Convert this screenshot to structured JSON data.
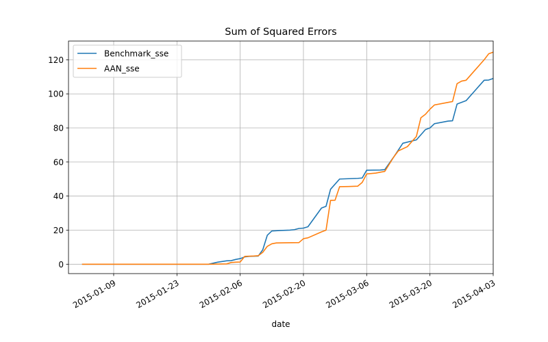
{
  "chart_data": {
    "type": "line",
    "title": "Sum of Squared Errors",
    "xlabel": "date",
    "ylabel": "",
    "grid": true,
    "legend_position": "upper-left",
    "x_ticks": [
      "2015-01-09",
      "2015-01-23",
      "2015-02-06",
      "2015-02-20",
      "2015-03-06",
      "2015-03-20",
      "2015-04-03"
    ],
    "xlim": [
      "2014-12-30",
      "2015-04-03"
    ],
    "ylim": [
      -5.5,
      131
    ],
    "y_ticks": [
      0,
      20,
      40,
      60,
      80,
      100,
      120
    ],
    "series": [
      {
        "name": "Benchmark_sse",
        "color": "#1f77b4",
        "points": [
          [
            "2015-01-02",
            0
          ],
          [
            "2015-01-09",
            0
          ],
          [
            "2015-01-16",
            0
          ],
          [
            "2015-01-23",
            0
          ],
          [
            "2015-01-30",
            0
          ],
          [
            "2015-02-01",
            1.2
          ],
          [
            "2015-02-03",
            2.0
          ],
          [
            "2015-02-04",
            2.1
          ],
          [
            "2015-02-05",
            2.8
          ],
          [
            "2015-02-06",
            3.3
          ],
          [
            "2015-02-07",
            4.3
          ],
          [
            "2015-02-08",
            4.6
          ],
          [
            "2015-02-09",
            4.7
          ],
          [
            "2015-02-10",
            4.8
          ],
          [
            "2015-02-11",
            8.5
          ],
          [
            "2015-02-12",
            17.0
          ],
          [
            "2015-02-13",
            19.5
          ],
          [
            "2015-02-15",
            19.8
          ],
          [
            "2015-02-17",
            20.0
          ],
          [
            "2015-02-18",
            20.3
          ],
          [
            "2015-02-19",
            21.0
          ],
          [
            "2015-02-20",
            21.2
          ],
          [
            "2015-02-21",
            22.0
          ],
          [
            "2015-02-24",
            33.0
          ],
          [
            "2015-02-25",
            34.0
          ],
          [
            "2015-02-26",
            44.0
          ],
          [
            "2015-02-28",
            50.0
          ],
          [
            "2015-03-02",
            50.2
          ],
          [
            "2015-03-04",
            50.4
          ],
          [
            "2015-03-05",
            50.6
          ],
          [
            "2015-03-06",
            55.2
          ],
          [
            "2015-03-09",
            55.3
          ],
          [
            "2015-03-10",
            55.5
          ],
          [
            "2015-03-12",
            63.0
          ],
          [
            "2015-03-14",
            71.0
          ],
          [
            "2015-03-17",
            73.0
          ],
          [
            "2015-03-18",
            76.0
          ],
          [
            "2015-03-19",
            79.0
          ],
          [
            "2015-03-20",
            80.0
          ],
          [
            "2015-03-21",
            82.5
          ],
          [
            "2015-03-24",
            84.0
          ],
          [
            "2015-03-25",
            84.2
          ],
          [
            "2015-03-26",
            94.0
          ],
          [
            "2015-03-28",
            96.0
          ],
          [
            "2015-03-30",
            102.0
          ],
          [
            "2015-04-01",
            108.0
          ],
          [
            "2015-04-02",
            108.1
          ],
          [
            "2015-04-03",
            109.0
          ]
        ]
      },
      {
        "name": "AAN_sse",
        "color": "#ff7f0e",
        "points": [
          [
            "2015-01-02",
            0
          ],
          [
            "2015-01-09",
            0
          ],
          [
            "2015-01-16",
            0
          ],
          [
            "2015-01-23",
            0
          ],
          [
            "2015-01-30",
            0
          ],
          [
            "2015-02-03",
            0.2
          ],
          [
            "2015-02-04",
            1.0
          ],
          [
            "2015-02-05",
            1.2
          ],
          [
            "2015-02-06",
            1.3
          ],
          [
            "2015-02-07",
            4.6
          ],
          [
            "2015-02-09",
            4.8
          ],
          [
            "2015-02-10",
            5.0
          ],
          [
            "2015-02-11",
            7.0
          ],
          [
            "2015-02-12",
            10.5
          ],
          [
            "2015-02-13",
            12.0
          ],
          [
            "2015-02-14",
            12.5
          ],
          [
            "2015-02-16",
            12.6
          ],
          [
            "2015-02-19",
            12.7
          ],
          [
            "2015-02-20",
            15.0
          ],
          [
            "2015-02-21",
            15.5
          ],
          [
            "2015-02-24",
            19.0
          ],
          [
            "2015-02-25",
            20.0
          ],
          [
            "2015-02-26",
            37.5
          ],
          [
            "2015-02-27",
            37.6
          ],
          [
            "2015-02-28",
            45.5
          ],
          [
            "2015-03-02",
            45.6
          ],
          [
            "2015-03-04",
            45.8
          ],
          [
            "2015-03-05",
            48.0
          ],
          [
            "2015-03-06",
            53.0
          ],
          [
            "2015-03-08",
            53.5
          ],
          [
            "2015-03-10",
            54.5
          ],
          [
            "2015-03-12",
            63.0
          ],
          [
            "2015-03-13",
            66.5
          ],
          [
            "2015-03-15",
            69.0
          ],
          [
            "2015-03-16",
            72.0
          ],
          [
            "2015-03-17",
            75.0
          ],
          [
            "2015-03-18",
            86.0
          ],
          [
            "2015-03-19",
            88.0
          ],
          [
            "2015-03-20",
            91.0
          ],
          [
            "2015-03-21",
            93.5
          ],
          [
            "2015-03-24",
            95.0
          ],
          [
            "2015-03-25",
            95.5
          ],
          [
            "2015-03-26",
            106.0
          ],
          [
            "2015-03-27",
            107.5
          ],
          [
            "2015-03-28",
            108.0
          ],
          [
            "2015-03-30",
            114.0
          ],
          [
            "2015-04-01",
            120.0
          ],
          [
            "2015-04-02",
            123.5
          ],
          [
            "2015-04-03",
            124.5
          ]
        ]
      }
    ]
  }
}
